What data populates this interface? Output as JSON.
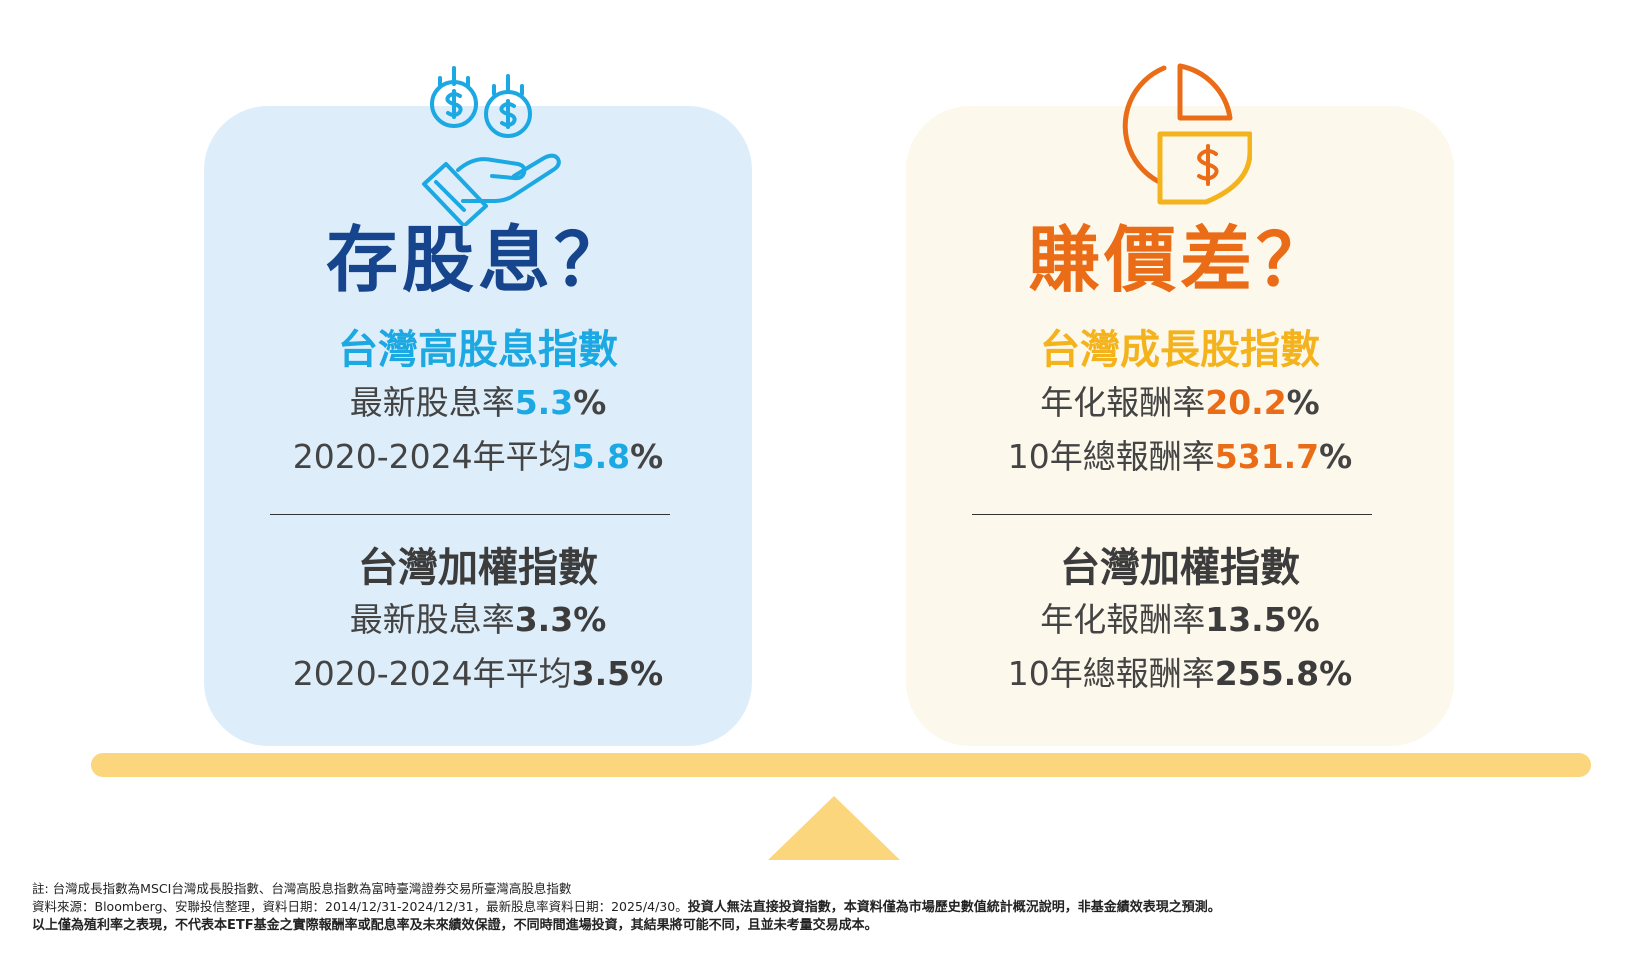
{
  "left": {
    "icon": "hand-holding-coins-icon",
    "title": "存股息？",
    "primary": {
      "name": "台灣高股息指數",
      "line1_label": "最新股息率",
      "line1_value": "5.3",
      "line2_label": "2020-2024年平均",
      "line2_value": "5.8",
      "unit": "%"
    },
    "benchmark": {
      "name": "台灣加權指數",
      "line1_label": "最新股息率",
      "line1_value": "3.3",
      "line2_label": "2020-2024年平均",
      "line2_value": "3.5",
      "unit": "%"
    }
  },
  "right": {
    "icon": "pie-chart-dollar-icon",
    "title": "賺價差？",
    "primary": {
      "name": "台灣成長股指數",
      "line1_label": "年化報酬率",
      "line1_value": "20.2",
      "line2_label": "10年總報酬率",
      "line2_value": "531.7",
      "unit": "%"
    },
    "benchmark": {
      "name": "台灣加權指數",
      "line1_label": "年化報酬率",
      "line1_value": "13.5",
      "line2_label": "10年總報酬率",
      "line2_value": "255.8",
      "unit": "%"
    }
  },
  "colors": {
    "left_title": "#16458d",
    "left_accent": "#1ca8e2",
    "right_title": "#ea6c17",
    "right_accent": "#f4b31c",
    "left_bg": "#ddeefa",
    "right_bg": "#fdf8ec",
    "beam": "#fbd67c"
  },
  "footnotes": {
    "note": "註: 台灣成長指數為MSCI台灣成長股指數、台灣高股息指數為富時臺灣證券交易所臺灣高股息指數",
    "source": "資料來源：Bloomberg、安聯投信整理，資料日期：2014/12/31-2024/12/31，最新股息率資料日期：2025/4/30。",
    "disclaimer1": "投資人無法直接投資指數，本資料僅為市場歷史數值統計概況說明，非基金績效表現之預測。",
    "disclaimer2": "以上僅為殖利率之表現，不代表本ETF基金之實際報酬率或配息率及未來績效保證，不同時間進場投資，其結果將可能不同，且並未考量交易成本。"
  }
}
